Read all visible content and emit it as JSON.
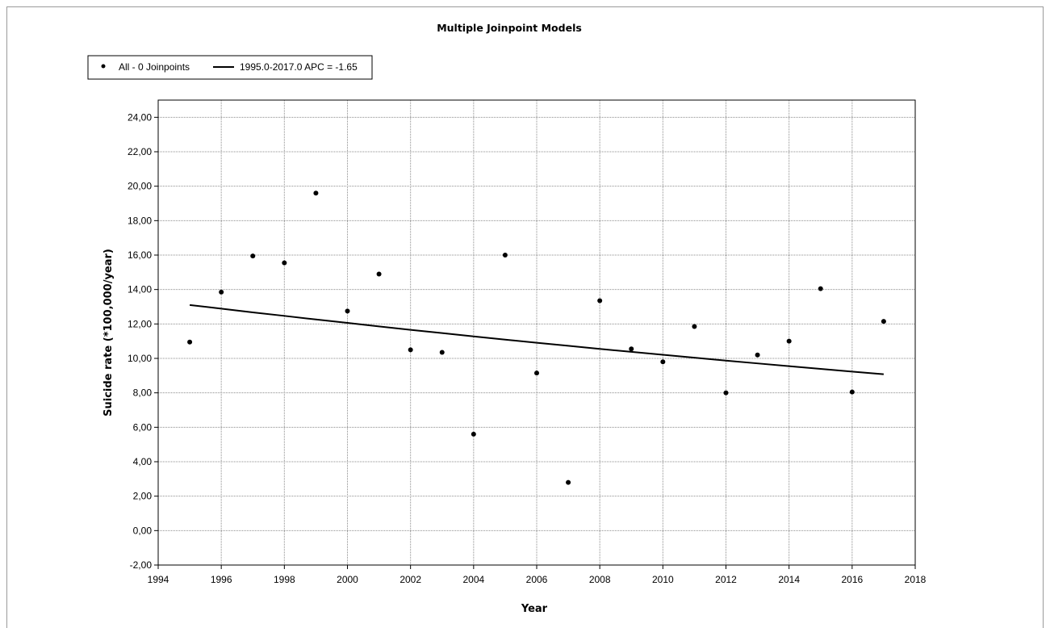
{
  "chart_data": {
    "type": "scatter",
    "title": "Multiple Joinpoint Models",
    "xlabel": "Year",
    "ylabel": "Suicide rate (*100,000/year)",
    "xlim": [
      1994,
      2018
    ],
    "ylim": [
      -2,
      25
    ],
    "x_ticks": [
      1994,
      1996,
      1998,
      2000,
      2002,
      2004,
      2006,
      2008,
      2010,
      2012,
      2014,
      2016,
      2018
    ],
    "x_tick_labels": [
      "1994",
      "1996",
      "1998",
      "2000",
      "2002",
      "2004",
      "2006",
      "2008",
      "2010",
      "2012",
      "2014",
      "2016",
      "2018"
    ],
    "y_ticks": [
      -2,
      0,
      2,
      4,
      6,
      8,
      10,
      12,
      14,
      16,
      18,
      20,
      22,
      24
    ],
    "y_tick_labels": [
      "-2,00",
      "0,00",
      "2,00",
      "4,00",
      "6,00",
      "8,00",
      "10,00",
      "12,00",
      "14,00",
      "16,00",
      "18,00",
      "20,00",
      "22,00",
      "24,00"
    ],
    "grid": true,
    "legend_position": "top-left",
    "series": [
      {
        "name": "All - 0 Joinpoints",
        "kind": "points",
        "color": "#000000",
        "x": [
          1995,
          1996,
          1997,
          1998,
          1999,
          2000,
          2001,
          2002,
          2003,
          2004,
          2005,
          2006,
          2007,
          2008,
          2009,
          2010,
          2011,
          2012,
          2013,
          2014,
          2015,
          2016,
          2017
        ],
        "y": [
          10.95,
          13.85,
          15.95,
          15.55,
          19.6,
          12.75,
          14.9,
          10.5,
          10.35,
          5.6,
          16.0,
          9.15,
          2.8,
          13.35,
          10.55,
          9.8,
          11.85,
          8.0,
          10.2,
          11.0,
          14.05,
          8.05,
          12.15
        ]
      },
      {
        "name": "1995.0-2017.0 APC  = -1.65",
        "kind": "line",
        "color": "#000000",
        "x": [
          1995,
          1996,
          1997,
          1998,
          1999,
          2000,
          2001,
          2002,
          2003,
          2004,
          2005,
          2006,
          2007,
          2008,
          2009,
          2010,
          2011,
          2012,
          2013,
          2014,
          2015,
          2016,
          2017
        ],
        "y": [
          13.1,
          12.89,
          12.67,
          12.47,
          12.26,
          12.06,
          11.86,
          11.66,
          11.47,
          11.28,
          11.09,
          10.91,
          10.73,
          10.55,
          10.38,
          10.21,
          10.04,
          9.87,
          9.71,
          9.55,
          9.39,
          9.23,
          9.08
        ]
      }
    ]
  }
}
